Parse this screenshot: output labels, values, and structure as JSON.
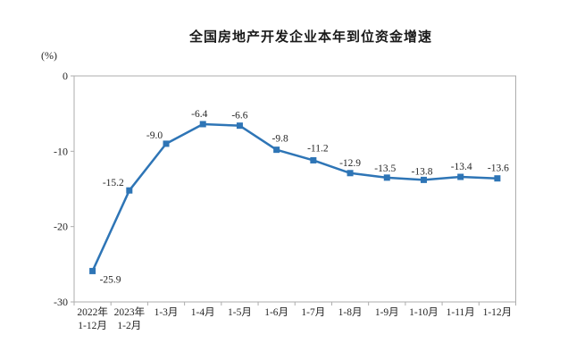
{
  "page": {
    "title": "全国房地产开发企业本年到位资金增速",
    "unit_label": "(%)"
  },
  "chart_data": {
    "type": "line",
    "title": "全国房地产开发企业本年到位资金增速",
    "ylabel": "(%)",
    "xlabel": "",
    "categories": [
      [
        "2022年",
        "1-12月"
      ],
      [
        "2023年",
        "1-2月"
      ],
      [
        "1-3月"
      ],
      [
        "1-4月"
      ],
      [
        "1-5月"
      ],
      [
        "1-6月"
      ],
      [
        "1-7月"
      ],
      [
        "1-8月"
      ],
      [
        "1-9月"
      ],
      [
        "1-10月"
      ],
      [
        "1-11月"
      ],
      [
        "1-12月"
      ]
    ],
    "series": [
      {
        "name": "本年到位资金增速",
        "values": [
          -25.9,
          -15.2,
          -9.0,
          -6.4,
          -6.6,
          -9.8,
          -11.2,
          -12.9,
          -13.5,
          -13.8,
          -13.4,
          -13.6
        ],
        "data_labels": [
          "-25.9",
          "-15.2",
          "-9.0",
          "-6.4",
          "-6.6",
          "-9.8",
          "-11.2",
          "-12.9",
          "-13.5",
          "-13.8",
          "-13.4",
          "-13.6"
        ]
      }
    ],
    "ylim": [
      -30,
      0
    ],
    "y_ticks": [
      0,
      -10,
      -20,
      -30
    ],
    "y_tick_labels": [
      "0",
      "-10",
      "-20",
      "-30"
    ],
    "grid": false,
    "legend_position": "none",
    "colors": {
      "line": "#2E75B6",
      "marker": "#2E75B6",
      "axis_border": "#ADADAD",
      "text": "#262626"
    }
  }
}
